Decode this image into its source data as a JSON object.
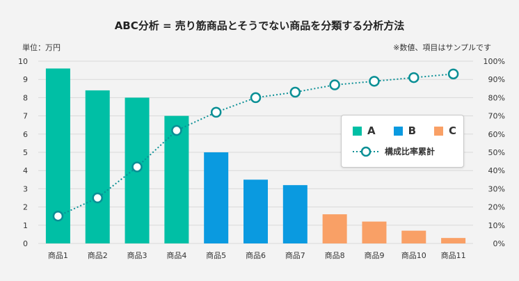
{
  "chart_data": {
    "type": "bar",
    "title": "ABC分析 = 売り筋商品とそうでない商品を分類する分析方法",
    "unit_label": "単位：万円",
    "note": "※数値、項目はサンプルです",
    "categories": [
      "商品1",
      "商品2",
      "商品3",
      "商品4",
      "商品5",
      "商品6",
      "商品7",
      "商品8",
      "商品9",
      "商品10",
      "商品11"
    ],
    "values": [
      9.6,
      8.4,
      8.0,
      7.0,
      5.0,
      3.5,
      3.2,
      1.6,
      1.2,
      0.7,
      0.3
    ],
    "classes": [
      "A",
      "A",
      "A",
      "A",
      "B",
      "B",
      "B",
      "C",
      "C",
      "C",
      "C"
    ],
    "class_colors": {
      "A": "#00bfa5",
      "B": "#0a9ae0",
      "C": "#f9a066"
    },
    "cumulative_series": {
      "name": "構成比率累計",
      "values": [
        15,
        25,
        42,
        62,
        72,
        80,
        83,
        87,
        89,
        91,
        93
      ],
      "color": "#0a8f95"
    },
    "ylim": [
      0,
      10
    ],
    "y_ticks": [
      "0",
      "1",
      "2",
      "3",
      "4",
      "5",
      "6",
      "7",
      "8",
      "9",
      "10"
    ],
    "y2lim": [
      0,
      100
    ],
    "y2_ticks": [
      "0%",
      "10%",
      "20%",
      "30%",
      "40%",
      "50%",
      "60%",
      "70%",
      "80%",
      "90%",
      "100%"
    ],
    "grid": true,
    "legend_position": "center-right",
    "legend": {
      "class_items": [
        {
          "label": "A",
          "color": "#00bfa5"
        },
        {
          "label": "B",
          "color": "#0a9ae0"
        },
        {
          "label": "C",
          "color": "#f9a066"
        }
      ],
      "line_label": "構成比率累計"
    }
  }
}
